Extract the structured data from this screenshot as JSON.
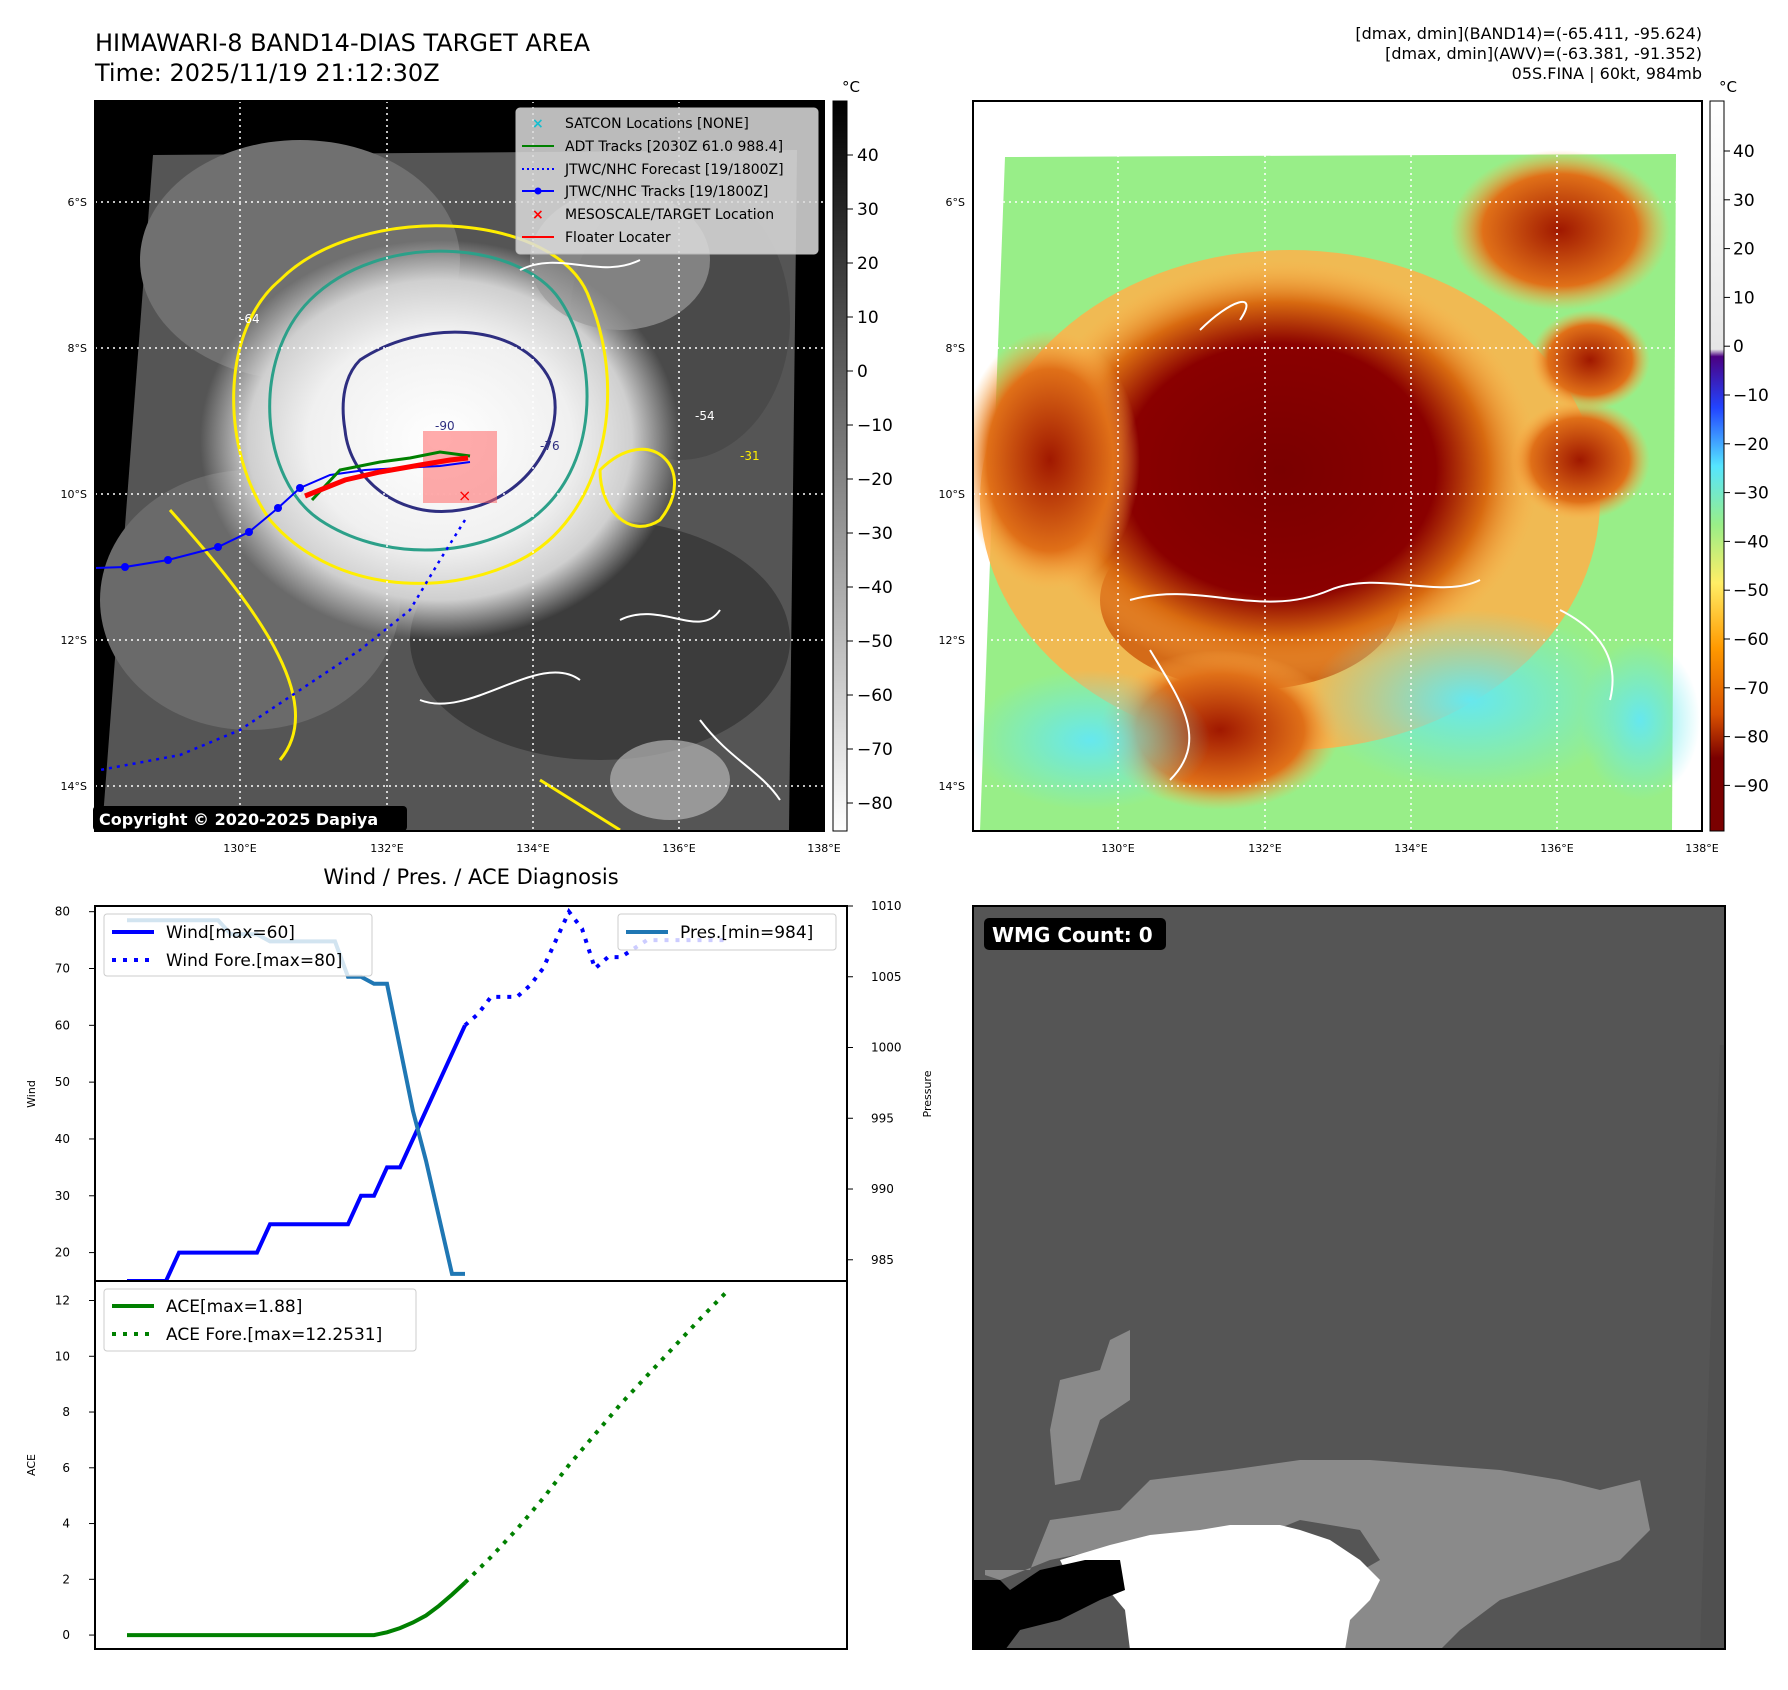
{
  "header": {
    "title_line1": "HIMAWARI-8 BAND14-DIAS TARGET AREA",
    "title_line2": "Time: 2025/11/19 21:12:30Z",
    "info_line1": "[dmax, dmin](BAND14)=(-65.411, -95.624)",
    "info_line2": "[dmax, dmin](AWV)=(-63.381, -91.352)",
    "info_line3": "05S.FINA | 60kt, 984mb"
  },
  "map_axes": {
    "lat_labels": [
      "6°S",
      "8°S",
      "10°S",
      "12°S",
      "14°S"
    ],
    "lon_labels": [
      "130°E",
      "132°E",
      "134°E",
      "136°E",
      "138°E"
    ]
  },
  "ir_panel": {
    "colorbar_unit": "°C",
    "colorbar_ticks": [
      "40",
      "30",
      "20",
      "10",
      "0",
      "−10",
      "−20",
      "−30",
      "−40",
      "−50",
      "−60",
      "−70",
      "−80"
    ],
    "copyright": "Copyright © 2020-2025 Dapiya",
    "legend": [
      {
        "label": "SATCON Locations [NONE]",
        "color": "#17becf",
        "marker": "x"
      },
      {
        "label": "ADT Tracks [2030Z 61.0 988.4]",
        "color": "#008000",
        "marker": "line"
      },
      {
        "label": "JTWC/NHC Forecast [19/1800Z]",
        "color": "#0000ff",
        "marker": "dotted"
      },
      {
        "label": "JTWC/NHC Tracks [19/1800Z]",
        "color": "#0000ff",
        "marker": "line-dot"
      },
      {
        "label": "MESOSCALE/TARGET Location",
        "color": "#ff0000",
        "marker": "x"
      },
      {
        "label": "Floater Locater",
        "color": "#ff0000",
        "marker": "line"
      }
    ],
    "contour_labels": [
      "-64",
      "-54",
      "-31",
      "-76",
      "-90"
    ]
  },
  "awv_panel": {
    "colorbar_unit": "°C",
    "colorbar_ticks": [
      "40",
      "30",
      "20",
      "10",
      "0",
      "−10",
      "−20",
      "−30",
      "−40",
      "−50",
      "−60",
      "−70",
      "−80",
      "−90"
    ]
  },
  "wmg_panel": {
    "badge": "WMG Count: 0"
  },
  "chart_data": [
    {
      "type": "line",
      "title": "Wind / Pres. / ACE Diagnosis",
      "ylabel": "Wind",
      "y2label": "Pressure",
      "ylim": [
        15,
        81
      ],
      "y2lim": [
        983.5,
        1010
      ],
      "yticks": [
        "20",
        "30",
        "40",
        "50",
        "60",
        "70",
        "80"
      ],
      "y2ticks": [
        "985",
        "990",
        "995",
        "1000",
        "1005",
        "1010"
      ],
      "legend": [
        "Wind[max=60]",
        "Wind Fore.[max=80]",
        "Pres.[min=984]"
      ],
      "series": [
        {
          "name": "Wind",
          "style": "solid",
          "color": "#0000ff",
          "x": [
            0,
            3,
            4,
            10,
            11,
            17,
            18,
            19,
            20,
            21,
            22,
            23,
            24,
            25,
            26
          ],
          "y": [
            15,
            15,
            20,
            20,
            25,
            25,
            30,
            30,
            35,
            35,
            40,
            45,
            50,
            55,
            60
          ]
        },
        {
          "name": "Wind Fore.",
          "style": "dotted",
          "color": "#0000ff",
          "x": [
            26,
            27,
            28,
            30,
            31,
            32,
            33,
            34,
            35,
            36,
            37,
            38,
            40,
            43,
            46
          ],
          "y": [
            60,
            62,
            65,
            65,
            67,
            70,
            75,
            80,
            77,
            70,
            72,
            72,
            75,
            75,
            75
          ]
        },
        {
          "name": "Pres.",
          "style": "solid",
          "color": "#1f77b4",
          "x": [
            0,
            7,
            8,
            10,
            11,
            16,
            17,
            18,
            19,
            20,
            21,
            22,
            23,
            24,
            25,
            26
          ],
          "y": [
            1009,
            1009,
            1008,
            1008,
            1007.5,
            1007.5,
            1005,
            1005,
            1004.5,
            1004.5,
            1000,
            995.5,
            992,
            988,
            984,
            984
          ]
        }
      ]
    },
    {
      "type": "line",
      "title": "",
      "ylabel": "ACE",
      "ylim": [
        -0.5,
        12.7
      ],
      "yticks": [
        "0",
        "2",
        "4",
        "6",
        "8",
        "10",
        "12"
      ],
      "legend": [
        "ACE[max=1.88]",
        "ACE Fore.[max=12.2531]"
      ],
      "series": [
        {
          "name": "ACE",
          "style": "solid",
          "color": "#008000",
          "x": [
            0,
            19,
            20,
            21,
            22,
            23,
            24,
            25,
            26
          ],
          "y": [
            0,
            0,
            0.1,
            0.25,
            0.45,
            0.7,
            1.05,
            1.45,
            1.88
          ]
        },
        {
          "name": "ACE Fore.",
          "style": "dotted",
          "color": "#008000",
          "x": [
            26,
            28,
            30,
            32,
            34,
            36,
            38,
            40,
            42,
            44,
            46
          ],
          "y": [
            1.88,
            2.8,
            3.8,
            4.9,
            6.1,
            7.2,
            8.3,
            9.3,
            10.3,
            11.3,
            12.25
          ]
        }
      ]
    }
  ]
}
